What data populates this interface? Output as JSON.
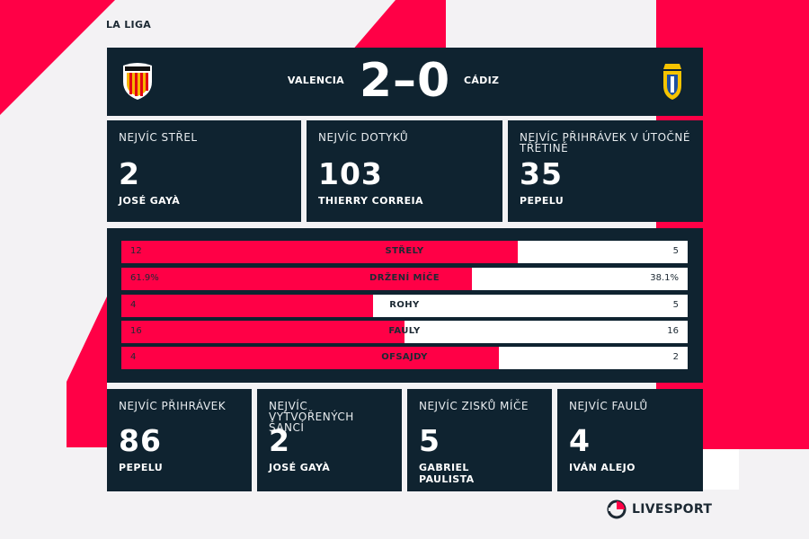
{
  "league": "LA LIGA",
  "match": {
    "home_team": "VALENCIA",
    "away_team": "CÁDIZ",
    "score": "2–0"
  },
  "top_cards": [
    {
      "title": "NEJVÍC STŘEL",
      "value": "2",
      "player": "JOSÉ GAYÀ"
    },
    {
      "title": "NEJVÍC DOTYKŮ",
      "value": "103",
      "player": "THIERRY CORREIA"
    },
    {
      "title": "NEJVÍC PŘIHRÁVEK V ÚTOČNÉ TŘETINĚ",
      "value": "35",
      "player": "PEPELU"
    }
  ],
  "stats": [
    {
      "label": "STŘELY",
      "home": "12",
      "away": "5",
      "home_share": 0.7
    },
    {
      "label": "DRŽENÍ MÍČE",
      "home": "61.9%",
      "away": "38.1%",
      "home_share": 0.619
    },
    {
      "label": "ROHY",
      "home": "4",
      "away": "5",
      "home_share": 0.445
    },
    {
      "label": "FAULY",
      "home": "16",
      "away": "16",
      "home_share": 0.5
    },
    {
      "label": "OFSAJDY",
      "home": "4",
      "away": "2",
      "home_share": 0.667
    }
  ],
  "bottom_cards": [
    {
      "title": "NEJVÍC PŘIHRÁVEK",
      "value": "86",
      "player": "PEPELU"
    },
    {
      "title": "NEJVÍC VYTVOŘENÝCH ŠANCÍ",
      "value": "2",
      "player": "JOSÉ GAYÀ"
    },
    {
      "title": "NEJVÍC ZISKŮ MÍČE",
      "value": "5",
      "player": "GABRIEL PAULISTA"
    },
    {
      "title": "NEJVÍC FAULŮ",
      "value": "4",
      "player": "IVÁN ALEJO"
    }
  ],
  "brand": "LIVESPORT",
  "colors": {
    "accent": "#ff0046",
    "panel": "#0f2330",
    "background": "#f3f2f4"
  }
}
